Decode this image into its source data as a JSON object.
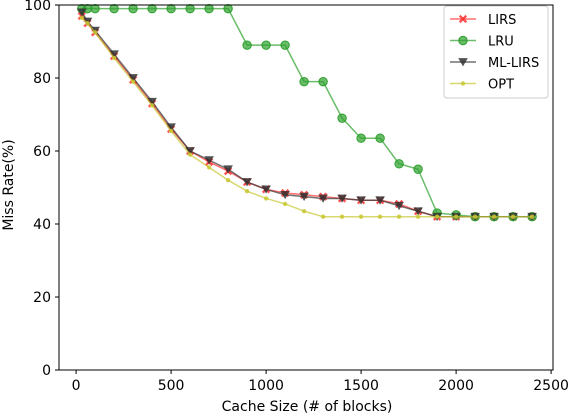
{
  "chart_data": {
    "type": "line",
    "title": "",
    "xlabel": "Cache Size (# of blocks)",
    "ylabel": "Miss Rate(%)",
    "xlim": [
      -90,
      2510
    ],
    "ylim": [
      0,
      100
    ],
    "xticks": [
      0,
      500,
      1000,
      1500,
      2000,
      2500
    ],
    "yticks": [
      0,
      20,
      40,
      60,
      80,
      100
    ],
    "grid": false,
    "legend_position": "top-right",
    "series": [
      {
        "name": "LIRS",
        "color": "#ff3333",
        "marker": "x",
        "x": [
          30,
          60,
          100,
          200,
          300,
          400,
          500,
          600,
          700,
          800,
          900,
          1000,
          1100,
          1200,
          1300,
          1400,
          1500,
          1600,
          1700,
          1800,
          1900,
          2000,
          2100,
          2200,
          2300,
          2400
        ],
        "y": [
          97,
          95,
          92.5,
          86,
          79.5,
          73,
          66,
          60,
          57,
          54.5,
          51.5,
          49.5,
          48.5,
          48,
          47.5,
          47,
          46.5,
          46.5,
          45.5,
          43.5,
          42,
          42,
          42,
          42,
          42,
          42
        ]
      },
      {
        "name": "LRU",
        "color": "#2ca02c",
        "marker": "o",
        "x": [
          30,
          60,
          100,
          200,
          300,
          400,
          500,
          600,
          700,
          800,
          900,
          1000,
          1100,
          1200,
          1300,
          1400,
          1500,
          1600,
          1700,
          1800,
          1900,
          2000,
          2100,
          2200,
          2300,
          2400
        ],
        "y": [
          99,
          99,
          99,
          99,
          99,
          99,
          99,
          99,
          99,
          99,
          89,
          89,
          89,
          79,
          79,
          69,
          63.5,
          63.5,
          56.5,
          55,
          43,
          42.5,
          42,
          42,
          42,
          42
        ]
      },
      {
        "name": "ML-LIRS",
        "color": "#333333",
        "marker": "v",
        "x": [
          30,
          60,
          100,
          200,
          300,
          400,
          500,
          600,
          700,
          800,
          900,
          1000,
          1100,
          1200,
          1300,
          1400,
          1500,
          1600,
          1700,
          1800,
          1900,
          2000,
          2100,
          2200,
          2300,
          2400
        ],
        "y": [
          98,
          95.5,
          93,
          86.5,
          80,
          73.5,
          66.5,
          60,
          57.5,
          55,
          51.5,
          49.5,
          48,
          47.5,
          47,
          47,
          46.5,
          46.5,
          45,
          43.5,
          42,
          42,
          42,
          42,
          42,
          42
        ]
      },
      {
        "name": "OPT",
        "color": "#c8c832",
        "marker": ".",
        "x": [
          30,
          60,
          100,
          200,
          300,
          400,
          500,
          600,
          700,
          800,
          900,
          1000,
          1100,
          1200,
          1300,
          1400,
          1500,
          1600,
          1700,
          1800,
          1900,
          2000,
          2100,
          2200,
          2300,
          2400
        ],
        "y": [
          96.5,
          95,
          92.5,
          85.5,
          79,
          72.5,
          65.5,
          59,
          55.5,
          52,
          49,
          47,
          45.5,
          43.5,
          42,
          42,
          42,
          42,
          42,
          42,
          42,
          42,
          42,
          42,
          42,
          42
        ]
      }
    ]
  }
}
